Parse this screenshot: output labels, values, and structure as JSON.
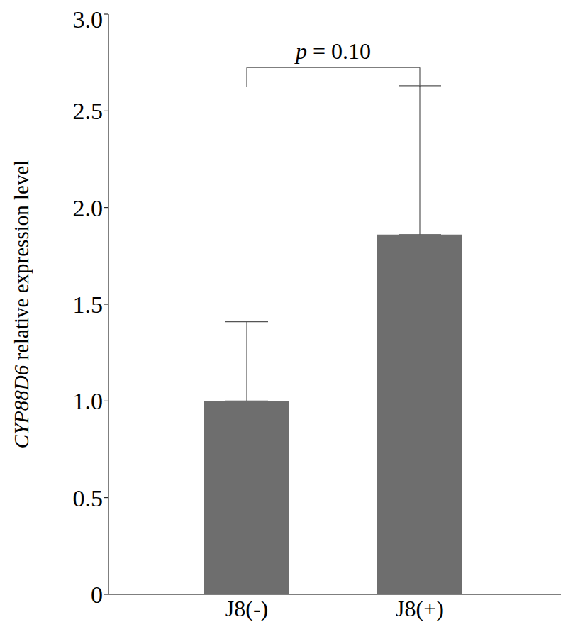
{
  "chart_data": {
    "type": "bar",
    "y_label": "CYP88D6 relative expression level",
    "categories": [
      "J8(-)",
      "J8(+)"
    ],
    "values": [
      1.0,
      1.86
    ],
    "error": [
      0.41,
      0.77
    ],
    "color": "#6e6e6e",
    "ylim": [
      0,
      3.0
    ],
    "yticks": [
      0,
      0.5,
      {
        "value": 1.0,
        "label": "1.0"
      },
      1.5,
      {
        "value": 2.0,
        "label": "2.0"
      },
      2.5,
      {
        "value": 3.0,
        "label": "3.0"
      }
    ],
    "grid": false,
    "annotation": "p = 0.10"
  }
}
